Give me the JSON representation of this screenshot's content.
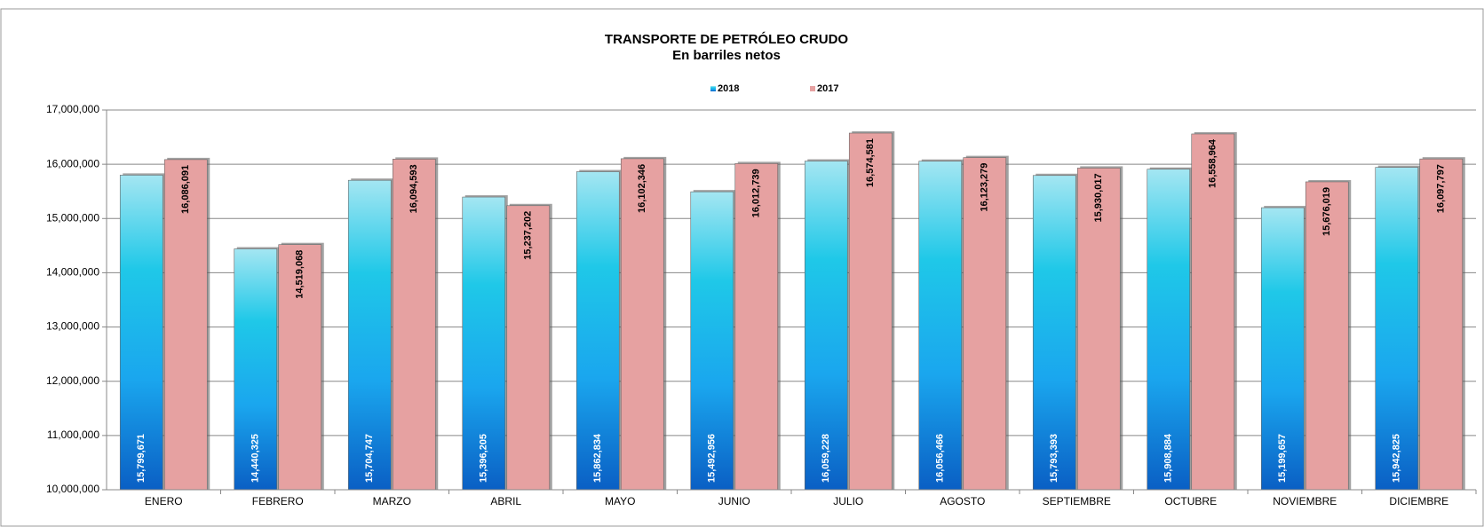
{
  "chart_data": {
    "type": "bar",
    "title": "TRANSPORTE DE PETRÓLEO CRUDO",
    "subtitle": "En barriles netos",
    "categories": [
      "ENERO",
      "FEBRERO",
      "MARZO",
      "ABRIL",
      "MAYO",
      "JUNIO",
      "JULIO",
      "AGOSTO",
      "SEPTIEMBRE",
      "OCTUBRE",
      "NOVIEMBRE",
      "DICIEMBRE"
    ],
    "series": [
      {
        "name": "2018",
        "color": "#1fc8e8",
        "values": [
          15799671,
          14440325,
          15704747,
          15396205,
          15862834,
          15492956,
          16059228,
          16056466,
          15793393,
          15908884,
          15199657,
          15942825
        ],
        "value_labels": [
          "15,799,671",
          "14,440,325",
          "15,704,747",
          "15,396,205",
          "15,862,834",
          "15,492,956",
          "16,059,228",
          "16,056,466",
          "15,793,393",
          "15,908,884",
          "15,199,657",
          "15,942,825"
        ]
      },
      {
        "name": "2017",
        "color": "#e6a1a1",
        "values": [
          16086091,
          14519068,
          16094593,
          15237202,
          16102346,
          16012739,
          16574581,
          16123279,
          15930017,
          16558964,
          15676019,
          16097797
        ],
        "value_labels": [
          "16,086,091",
          "14,519,068",
          "16,094,593",
          "15,237,202",
          "16,102,346",
          "16,012,739",
          "16,574,581",
          "16,123,279",
          "15,930,017",
          "16,558,964",
          "15,676,019",
          "16,097,797"
        ]
      }
    ],
    "ylim": [
      10000000,
      17000000
    ],
    "yticks": [
      {
        "value": 10000000,
        "label": "10,000,000"
      },
      {
        "value": 11000000,
        "label": "11,000,000"
      },
      {
        "value": 12000000,
        "label": "12,000,000"
      },
      {
        "value": 13000000,
        "label": "13,000,000"
      },
      {
        "value": 14000000,
        "label": "14,000,000"
      },
      {
        "value": 15000000,
        "label": "15,000,000"
      },
      {
        "value": 16000000,
        "label": "16,000,000"
      },
      {
        "value": 17000000,
        "label": "17,000,000"
      }
    ],
    "grid": true,
    "legend": "top"
  }
}
